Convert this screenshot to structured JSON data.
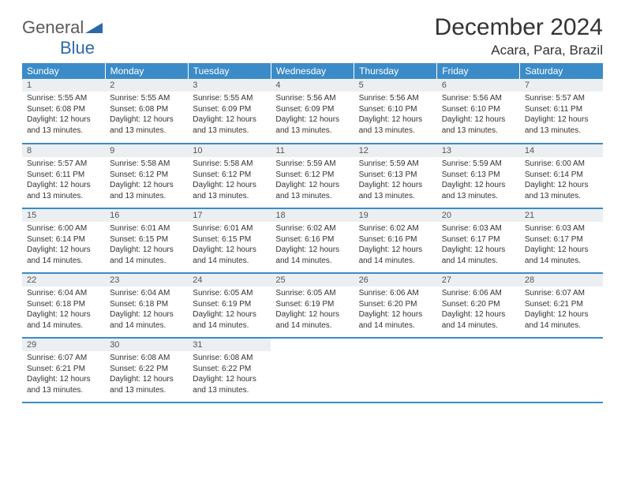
{
  "logo": {
    "word1": "General",
    "word2": "Blue"
  },
  "title": "December 2024",
  "location": "Acara, Para, Brazil",
  "colors": {
    "header_bg": "#3b8bc8",
    "header_text": "#ffffff",
    "daynum_bg": "#eceff1",
    "border": "#3b8bc8",
    "text": "#333333",
    "logo_gray": "#5a5a5a",
    "logo_blue": "#2b6aa8"
  },
  "typography": {
    "title_fontsize": 30,
    "location_fontsize": 17,
    "header_fontsize": 12,
    "daynum_fontsize": 11,
    "body_fontsize": 10
  },
  "weekdays": [
    "Sunday",
    "Monday",
    "Tuesday",
    "Wednesday",
    "Thursday",
    "Friday",
    "Saturday"
  ],
  "weeks": [
    [
      {
        "n": "1",
        "sunrise": "5:55 AM",
        "sunset": "6:08 PM",
        "dl": "12 hours and 13 minutes."
      },
      {
        "n": "2",
        "sunrise": "5:55 AM",
        "sunset": "6:08 PM",
        "dl": "12 hours and 13 minutes."
      },
      {
        "n": "3",
        "sunrise": "5:55 AM",
        "sunset": "6:09 PM",
        "dl": "12 hours and 13 minutes."
      },
      {
        "n": "4",
        "sunrise": "5:56 AM",
        "sunset": "6:09 PM",
        "dl": "12 hours and 13 minutes."
      },
      {
        "n": "5",
        "sunrise": "5:56 AM",
        "sunset": "6:10 PM",
        "dl": "12 hours and 13 minutes."
      },
      {
        "n": "6",
        "sunrise": "5:56 AM",
        "sunset": "6:10 PM",
        "dl": "12 hours and 13 minutes."
      },
      {
        "n": "7",
        "sunrise": "5:57 AM",
        "sunset": "6:11 PM",
        "dl": "12 hours and 13 minutes."
      }
    ],
    [
      {
        "n": "8",
        "sunrise": "5:57 AM",
        "sunset": "6:11 PM",
        "dl": "12 hours and 13 minutes."
      },
      {
        "n": "9",
        "sunrise": "5:58 AM",
        "sunset": "6:12 PM",
        "dl": "12 hours and 13 minutes."
      },
      {
        "n": "10",
        "sunrise": "5:58 AM",
        "sunset": "6:12 PM",
        "dl": "12 hours and 13 minutes."
      },
      {
        "n": "11",
        "sunrise": "5:59 AM",
        "sunset": "6:12 PM",
        "dl": "12 hours and 13 minutes."
      },
      {
        "n": "12",
        "sunrise": "5:59 AM",
        "sunset": "6:13 PM",
        "dl": "12 hours and 13 minutes."
      },
      {
        "n": "13",
        "sunrise": "5:59 AM",
        "sunset": "6:13 PM",
        "dl": "12 hours and 13 minutes."
      },
      {
        "n": "14",
        "sunrise": "6:00 AM",
        "sunset": "6:14 PM",
        "dl": "12 hours and 13 minutes."
      }
    ],
    [
      {
        "n": "15",
        "sunrise": "6:00 AM",
        "sunset": "6:14 PM",
        "dl": "12 hours and 14 minutes."
      },
      {
        "n": "16",
        "sunrise": "6:01 AM",
        "sunset": "6:15 PM",
        "dl": "12 hours and 14 minutes."
      },
      {
        "n": "17",
        "sunrise": "6:01 AM",
        "sunset": "6:15 PM",
        "dl": "12 hours and 14 minutes."
      },
      {
        "n": "18",
        "sunrise": "6:02 AM",
        "sunset": "6:16 PM",
        "dl": "12 hours and 14 minutes."
      },
      {
        "n": "19",
        "sunrise": "6:02 AM",
        "sunset": "6:16 PM",
        "dl": "12 hours and 14 minutes."
      },
      {
        "n": "20",
        "sunrise": "6:03 AM",
        "sunset": "6:17 PM",
        "dl": "12 hours and 14 minutes."
      },
      {
        "n": "21",
        "sunrise": "6:03 AM",
        "sunset": "6:17 PM",
        "dl": "12 hours and 14 minutes."
      }
    ],
    [
      {
        "n": "22",
        "sunrise": "6:04 AM",
        "sunset": "6:18 PM",
        "dl": "12 hours and 14 minutes."
      },
      {
        "n": "23",
        "sunrise": "6:04 AM",
        "sunset": "6:18 PM",
        "dl": "12 hours and 14 minutes."
      },
      {
        "n": "24",
        "sunrise": "6:05 AM",
        "sunset": "6:19 PM",
        "dl": "12 hours and 14 minutes."
      },
      {
        "n": "25",
        "sunrise": "6:05 AM",
        "sunset": "6:19 PM",
        "dl": "12 hours and 14 minutes."
      },
      {
        "n": "26",
        "sunrise": "6:06 AM",
        "sunset": "6:20 PM",
        "dl": "12 hours and 14 minutes."
      },
      {
        "n": "27",
        "sunrise": "6:06 AM",
        "sunset": "6:20 PM",
        "dl": "12 hours and 14 minutes."
      },
      {
        "n": "28",
        "sunrise": "6:07 AM",
        "sunset": "6:21 PM",
        "dl": "12 hours and 14 minutes."
      }
    ],
    [
      {
        "n": "29",
        "sunrise": "6:07 AM",
        "sunset": "6:21 PM",
        "dl": "12 hours and 13 minutes."
      },
      {
        "n": "30",
        "sunrise": "6:08 AM",
        "sunset": "6:22 PM",
        "dl": "12 hours and 13 minutes."
      },
      {
        "n": "31",
        "sunrise": "6:08 AM",
        "sunset": "6:22 PM",
        "dl": "12 hours and 13 minutes."
      },
      null,
      null,
      null,
      null
    ]
  ],
  "labels": {
    "sunrise": "Sunrise:",
    "sunset": "Sunset:",
    "daylight": "Daylight:"
  }
}
